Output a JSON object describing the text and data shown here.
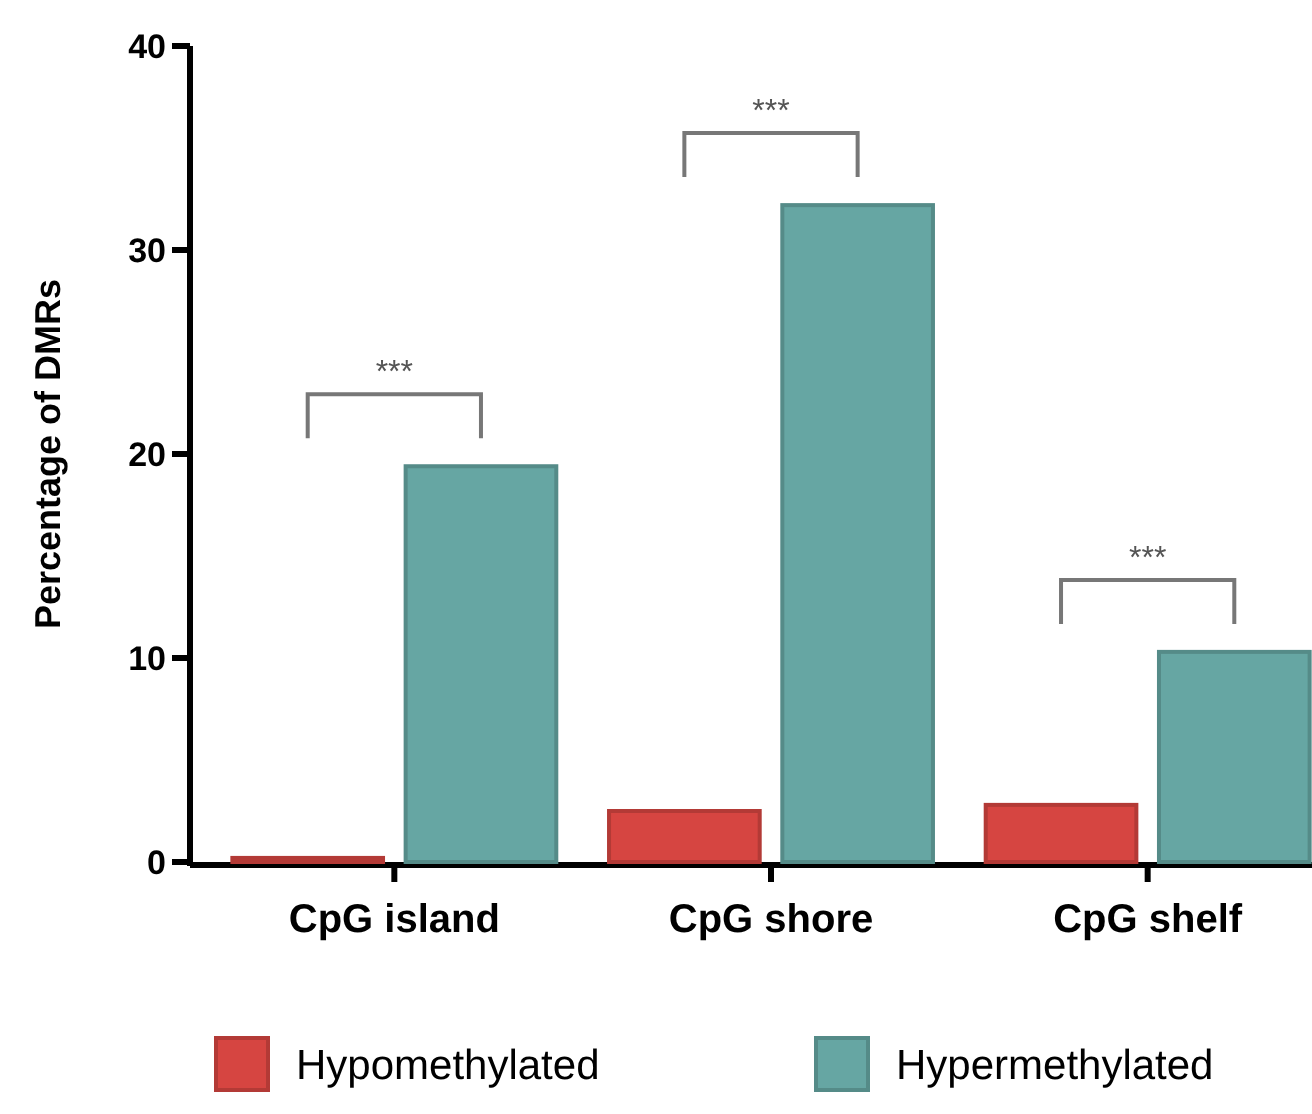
{
  "chart_data": {
    "type": "bar",
    "ylabel": "Percentage of DMRs",
    "categories": [
      "CpG island",
      "CpG shore",
      "CpG shelf"
    ],
    "series": [
      {
        "name": "Hypomethylated",
        "color": "#d64541",
        "values": [
          0.2,
          2.5,
          2.8
        ]
      },
      {
        "name": "Hypermethylated",
        "color": "#66a6a3",
        "values": [
          19.4,
          32.2,
          10.3
        ]
      }
    ],
    "ylim": [
      0,
      40
    ],
    "yticks": [
      0,
      10,
      20,
      30,
      40
    ],
    "grid": false,
    "legend": "bottom",
    "annotations": [
      "***",
      "***",
      "***"
    ]
  }
}
